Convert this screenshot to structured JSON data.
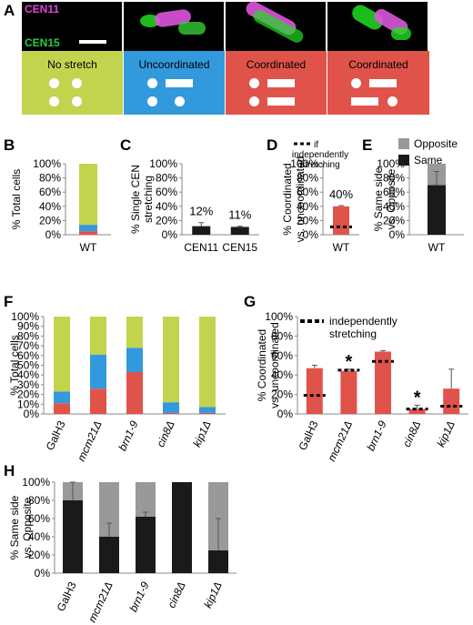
{
  "panels": {
    "A": "A",
    "B": "B",
    "C": "C",
    "D": "D",
    "E": "E",
    "F": "F",
    "G": "G",
    "H": "H"
  },
  "panel_a": {
    "channel_1": "CEN11",
    "channel_2": "CEN15",
    "channel_1_color": "#e040e0",
    "channel_2_color": "#22cc44",
    "categories": [
      {
        "label": "No stretch",
        "color": "#c2d44e"
      },
      {
        "label": "Uncoordinated",
        "color": "#3399dd"
      },
      {
        "label": "Coordinated",
        "color": "#e0534a"
      },
      {
        "label": "Coordinated",
        "color": "#e0534a"
      }
    ]
  },
  "legend_if": {
    "line1": "if",
    "line2": "independently",
    "line3": "stretching"
  },
  "legend_g": {
    "line1": "independently",
    "line2": "stretching"
  },
  "colors": {
    "no_stretch": "#c2d44e",
    "uncoordinated": "#3399dd",
    "coordinated": "#e0534a",
    "same": "#1a1a1a",
    "opposite": "#999999",
    "axis": "#888888"
  },
  "chart_data": [
    {
      "panel": "B",
      "type": "bar",
      "stacked": true,
      "ylabel": "% Total cells",
      "ylim": [
        0,
        100
      ],
      "yticks": [
        "0%",
        "20%",
        "40%",
        "60%",
        "80%",
        "100%"
      ],
      "categories": [
        "WT"
      ],
      "series": [
        {
          "name": "Coordinated",
          "values": [
            5
          ]
        },
        {
          "name": "Uncoordinated",
          "values": [
            9
          ]
        },
        {
          "name": "No stretch",
          "values": [
            86
          ]
        }
      ]
    },
    {
      "panel": "C",
      "type": "bar",
      "ylabel": "% Single CEN stretching",
      "ylabel_lines": [
        "% Single CEN",
        "stretching"
      ],
      "ylim": [
        0,
        100
      ],
      "yticks": [
        "0%",
        "20%",
        "40%",
        "60%",
        "80%",
        "100%"
      ],
      "categories": [
        "CEN11",
        "CEN15"
      ],
      "values": [
        12,
        11
      ],
      "errors": [
        5,
        1
      ],
      "data_labels": [
        "12%",
        "11%"
      ]
    },
    {
      "panel": "D",
      "type": "bar",
      "ylabel": "% Coordinated vs. uncoordinated",
      "ylabel_lines": [
        "% Coordinated",
        "vs. uncoordinated"
      ],
      "ylim": [
        0,
        100
      ],
      "yticks": [
        "0%",
        "20%",
        "40%",
        "60%",
        "80%",
        "100%"
      ],
      "categories": [
        "WT"
      ],
      "values": [
        40
      ],
      "errors": [
        1
      ],
      "if_independent": [
        11
      ],
      "data_labels": [
        "40%"
      ]
    },
    {
      "panel": "E",
      "type": "bar",
      "stacked": true,
      "ylabel": "% Same side vs. Opposite",
      "ylabel_lines": [
        "% Same side",
        "vs. Opposite"
      ],
      "ylim": [
        0,
        100
      ],
      "yticks": [
        "0%",
        "20%",
        "40%",
        "60%",
        "80%",
        "100%"
      ],
      "categories": [
        "WT"
      ],
      "series": [
        {
          "name": "Same",
          "values": [
            70
          ]
        },
        {
          "name": "Opposite",
          "values": [
            30
          ]
        }
      ],
      "errors": [
        19
      ],
      "legend": [
        "Opposite",
        "Same"
      ]
    },
    {
      "panel": "F",
      "type": "bar",
      "stacked": true,
      "ylabel": "% Total cells",
      "ylim": [
        0,
        100
      ],
      "yticks": [
        "0%",
        "10%",
        "20%",
        "30%",
        "40%",
        "50%",
        "60%",
        "70%",
        "80%",
        "90%",
        "100%"
      ],
      "categories": [
        "GalH3",
        "mcm21Δ",
        "brn1-9",
        "cin8Δ",
        "kip1Δ"
      ],
      "series": [
        {
          "name": "Coordinated",
          "values": [
            11,
            26,
            43,
            1,
            1
          ]
        },
        {
          "name": "Uncoordinated",
          "values": [
            12,
            35,
            25,
            11,
            6
          ]
        },
        {
          "name": "No stretch",
          "values": [
            77,
            39,
            32,
            88,
            93
          ]
        }
      ]
    },
    {
      "panel": "G",
      "type": "bar",
      "ylabel": "% Coordinated vs. uncoordinated",
      "ylabel_lines": [
        "% Coordinated",
        "vs. uncoordinated"
      ],
      "ylim": [
        0,
        100
      ],
      "yticks": [
        "0%",
        "20%",
        "40%",
        "60%",
        "80%",
        "100%"
      ],
      "categories": [
        "GalH3",
        "mcm21Δ",
        "brn1-9",
        "cin8Δ",
        "kip1Δ"
      ],
      "values": [
        47,
        44,
        64,
        5,
        26
      ],
      "errors": [
        3,
        2,
        1,
        4,
        20
      ],
      "if_independent": [
        19,
        45,
        54,
        5,
        8
      ],
      "significance": [
        "",
        "*",
        "",
        "*",
        ""
      ]
    },
    {
      "panel": "H",
      "type": "bar",
      "stacked": true,
      "ylabel": "% Same side vs. Opposite",
      "ylabel_lines": [
        "% Same side",
        "vs. Opposite"
      ],
      "ylim": [
        0,
        100
      ],
      "yticks": [
        "0%",
        "20%",
        "40%",
        "60%",
        "80%",
        "100%"
      ],
      "categories": [
        "GalH3",
        "mcm21Δ",
        "brn1-9",
        "cin8Δ",
        "kip1Δ"
      ],
      "series": [
        {
          "name": "Same",
          "values": [
            80,
            40,
            62,
            100,
            25
          ]
        },
        {
          "name": "Opposite",
          "values": [
            20,
            60,
            38,
            0,
            75
          ]
        }
      ],
      "errors": [
        20,
        15,
        5,
        0,
        35
      ]
    }
  ]
}
